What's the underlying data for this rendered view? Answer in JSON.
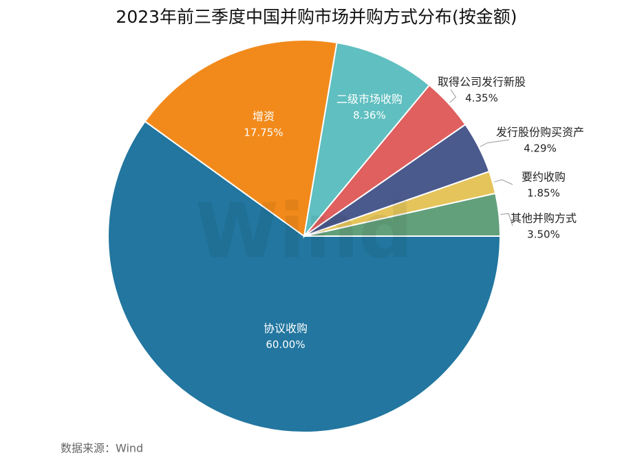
{
  "chart_data": {
    "type": "pie",
    "title": "2023年前三季度中国并购市场并购方式分布(按金额)",
    "categories": [
      "协议收购",
      "增资",
      "二级市场收购",
      "取得公司发行新股",
      "发行股份购买资产",
      "要约收购",
      "其他并购方式"
    ],
    "values": [
      60.0,
      17.75,
      8.36,
      4.35,
      4.29,
      1.85,
      3.5
    ],
    "value_labels": [
      "60.00%",
      "17.75%",
      "8.36%",
      "4.35%",
      "4.29%",
      "1.85%",
      "3.50%"
    ],
    "colors": [
      "#22769f",
      "#f28a1b",
      "#60bfc0",
      "#e05f5f",
      "#4b5a8d",
      "#e4c45b",
      "#62a07b"
    ],
    "source": "数据来源：Wind",
    "watermark": "Wind"
  }
}
